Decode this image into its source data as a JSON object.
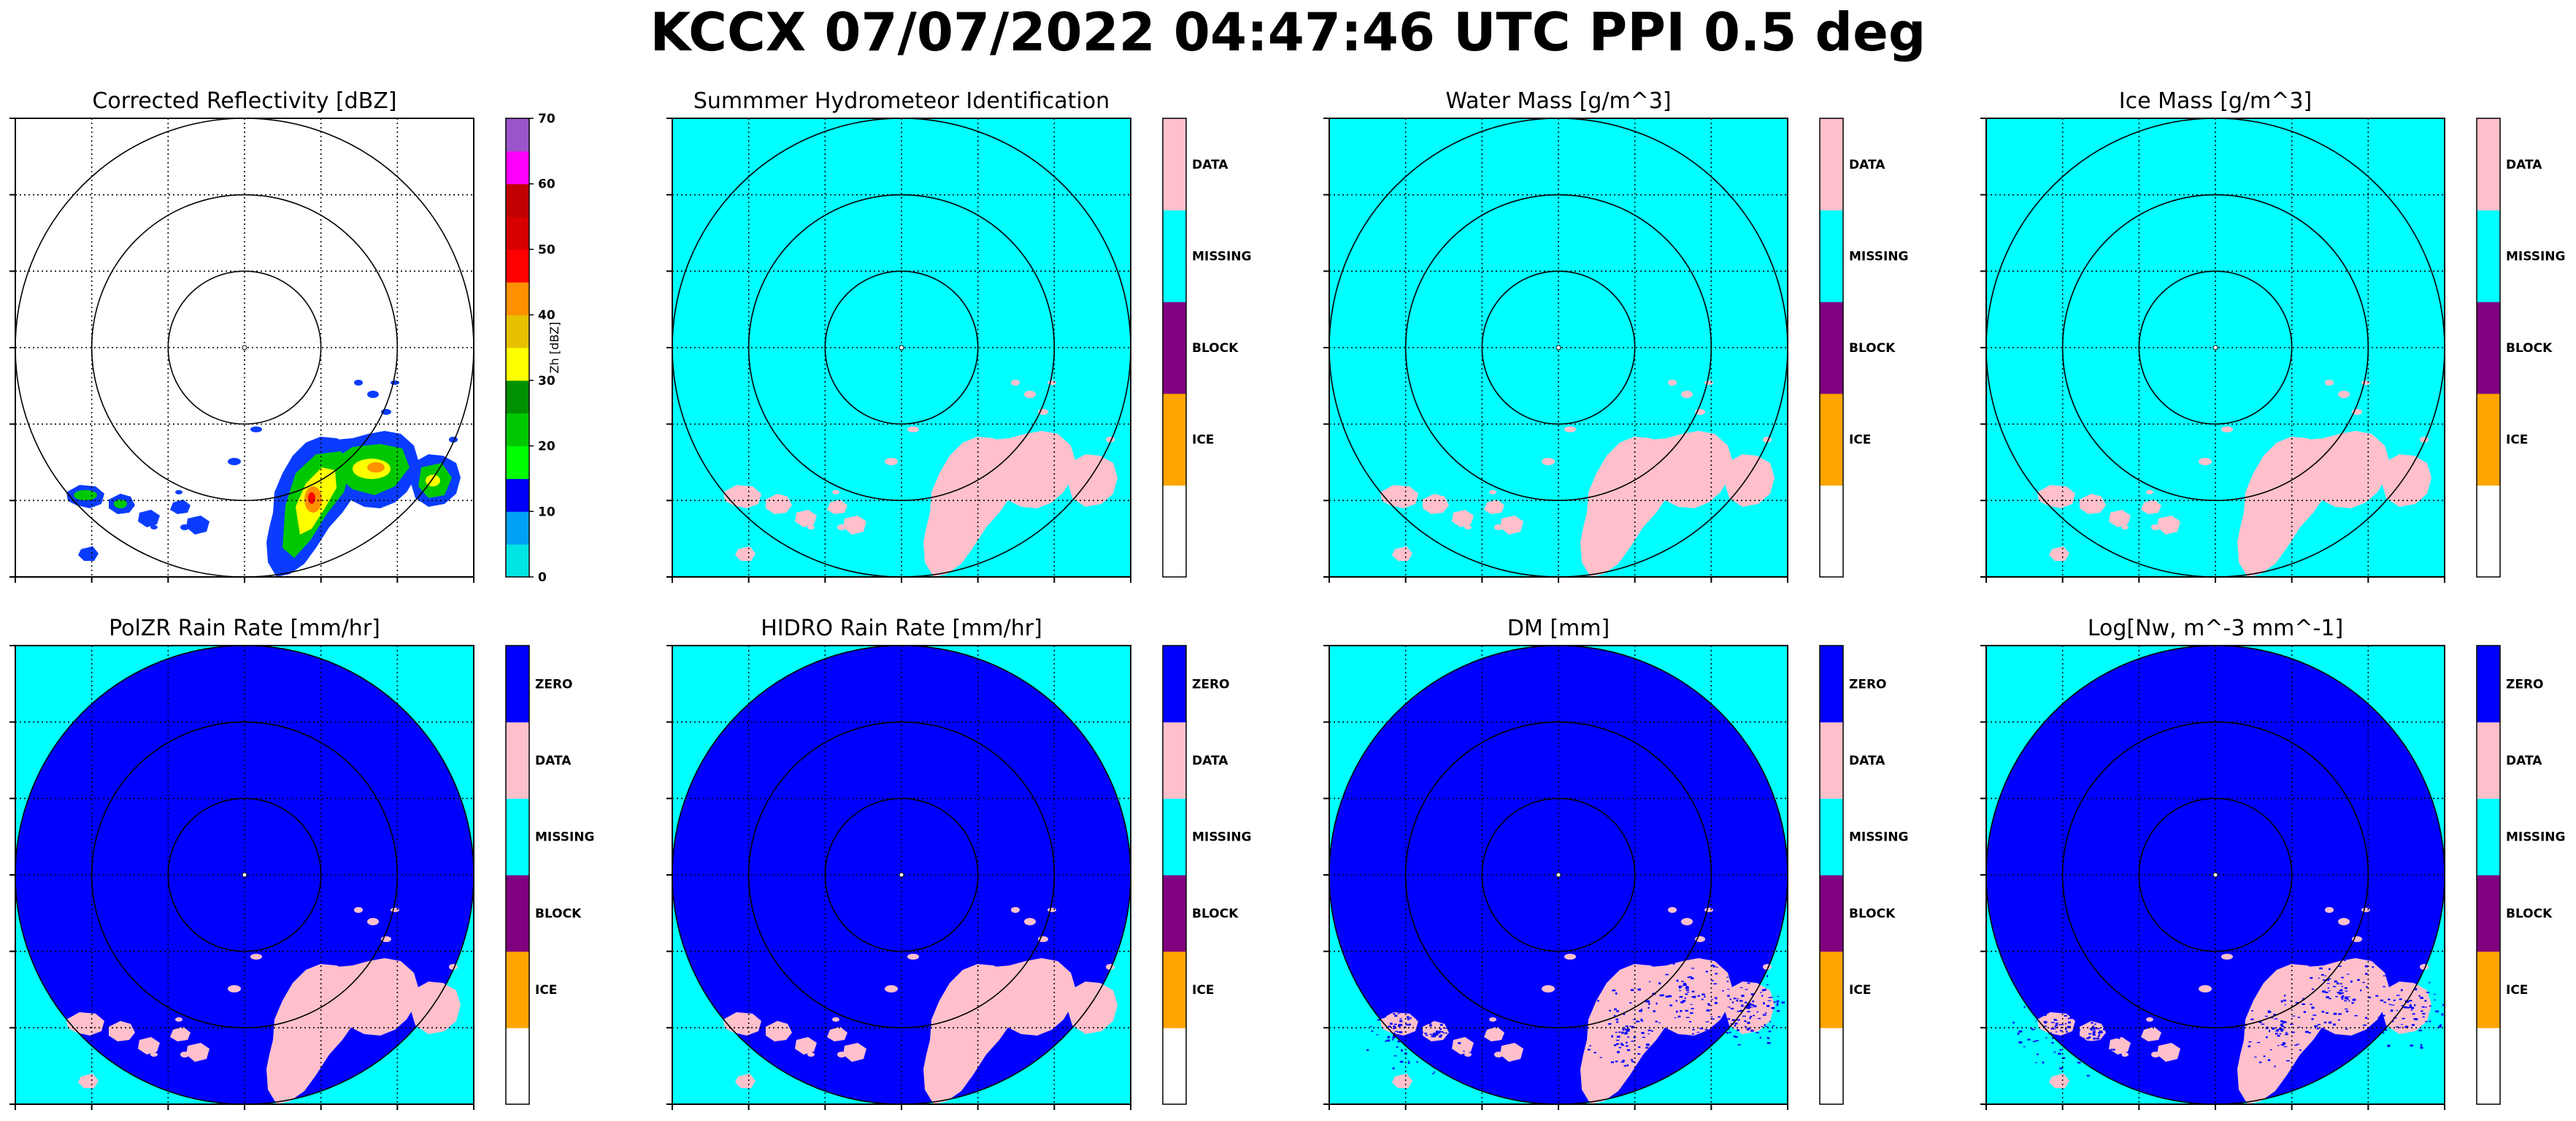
{
  "figure": {
    "title": "KCCX 07/07/2022 04:47:46 UTC PPI 0.5 deg"
  },
  "colors": {
    "missing": "#00ffff",
    "data": "#ffc0cb",
    "block": "#800080",
    "ice": "#ffa500",
    "zero": "#0000ff",
    "none": "#ffffff"
  },
  "chart_data": [
    {
      "type": "heatmap",
      "title": "Corrected Reflectivity [dBZ]",
      "grid": true,
      "range_rings": 3,
      "background": "#ffffff",
      "colorbar": {
        "kind": "continuous",
        "label": "Zh [dBZ]",
        "range": [
          0,
          70
        ],
        "ticks": [
          "0",
          "10",
          "20",
          "30",
          "40",
          "50",
          "60",
          "70"
        ],
        "colors": [
          "#00e4e4",
          "#00a0f6",
          "#0000f6",
          "#00ff00",
          "#00c800",
          "#009000",
          "#ffff00",
          "#e7c000",
          "#ff9000",
          "#ff0000",
          "#d60000",
          "#c00000",
          "#ff00ff",
          "#9955c9"
        ]
      },
      "echo": "reflectivity"
    },
    {
      "type": "heatmap",
      "title": "Summmer Hydrometeor Identification",
      "grid": true,
      "range_rings": 3,
      "background": "#00ffff",
      "colorbar": {
        "kind": "categorical",
        "labels": [
          "",
          "ICE",
          "BLOCK",
          "MISSING",
          "DATA"
        ]
      },
      "echo": "data"
    },
    {
      "type": "heatmap",
      "title": "Water Mass [g/m^3]",
      "grid": true,
      "range_rings": 3,
      "background": "#00ffff",
      "colorbar": {
        "kind": "categorical",
        "labels": [
          "",
          "ICE",
          "BLOCK",
          "MISSING",
          "DATA"
        ]
      },
      "echo": "data"
    },
    {
      "type": "heatmap",
      "title": "Ice Mass [g/m^3]",
      "grid": true,
      "range_rings": 3,
      "background": "#00ffff",
      "colorbar": {
        "kind": "categorical",
        "labels": [
          "",
          "ICE",
          "BLOCK",
          "MISSING",
          "DATA"
        ]
      },
      "echo": "data"
    },
    {
      "type": "heatmap",
      "title": "PolZR Rain Rate [mm/hr]",
      "grid": true,
      "range_rings": 3,
      "background": "#00ffff",
      "disk": "#0000ff",
      "colorbar": {
        "kind": "categorical",
        "labels": [
          "",
          "ICE",
          "BLOCK",
          "MISSING",
          "DATA",
          "ZERO"
        ]
      },
      "echo": "data"
    },
    {
      "type": "heatmap",
      "title": "HIDRO Rain Rate [mm/hr]",
      "grid": true,
      "range_rings": 3,
      "background": "#00ffff",
      "disk": "#0000ff",
      "colorbar": {
        "kind": "categorical",
        "labels": [
          "",
          "ICE",
          "BLOCK",
          "MISSING",
          "DATA",
          "ZERO"
        ]
      },
      "echo": "data"
    },
    {
      "type": "heatmap",
      "title": "DM [mm]",
      "grid": true,
      "range_rings": 3,
      "background": "#00ffff",
      "disk": "#0000ff",
      "colorbar": {
        "kind": "categorical",
        "labels": [
          "",
          "ICE",
          "BLOCK",
          "MISSING",
          "DATA",
          "ZERO"
        ]
      },
      "echo": "speckled"
    },
    {
      "type": "heatmap",
      "title": "Log[Nw, m^-3 mm^-1]",
      "grid": true,
      "range_rings": 3,
      "background": "#00ffff",
      "disk": "#0000ff",
      "colorbar": {
        "kind": "categorical",
        "labels": [
          "",
          "ICE",
          "BLOCK",
          "MISSING",
          "DATA",
          "ZERO"
        ]
      },
      "echo": "speckled"
    }
  ]
}
